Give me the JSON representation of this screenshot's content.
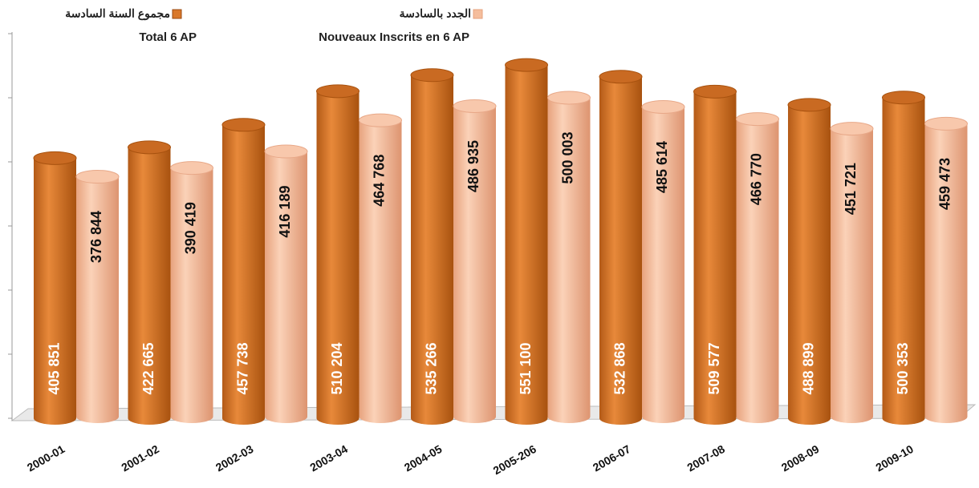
{
  "chart_data": {
    "type": "bar3d",
    "categories": [
      "2000-01",
      "2001-02",
      "2002-03",
      "2003-04",
      "2004-05",
      "2005-206",
      "2006-07",
      "2007-08",
      "2008-09",
      "2009-10"
    ],
    "series": [
      {
        "name": "Total 6 AP",
        "name_ar": "مجموع السنة السادسة",
        "color": "#d9782a",
        "values": [
          405851,
          422665,
          457738,
          510204,
          535266,
          551100,
          532868,
          509577,
          488899,
          500353
        ],
        "value_labels": [
          "405 851",
          "422 665",
          "457 738",
          "510 204",
          "535 266",
          "551 100",
          "532 868",
          "509 577",
          "488 899",
          "500 353"
        ]
      },
      {
        "name": "Nouveaux Inscrits en 6 AP",
        "name_ar": "الجدد بالسادسة",
        "color": "#f5bd9c",
        "values": [
          376844,
          390419,
          416189,
          464768,
          486935,
          500003,
          485614,
          466770,
          451721,
          459473
        ],
        "value_labels": [
          "376 844",
          "390 419",
          "416 189",
          "464 768",
          "486 935",
          "500 003",
          "485 614",
          "466 770",
          "451 721",
          "459 473"
        ]
      }
    ],
    "ylim": [
      0,
      600000
    ],
    "yticks": [
      0,
      100000,
      200000,
      300000,
      400000,
      500000,
      600000
    ]
  }
}
